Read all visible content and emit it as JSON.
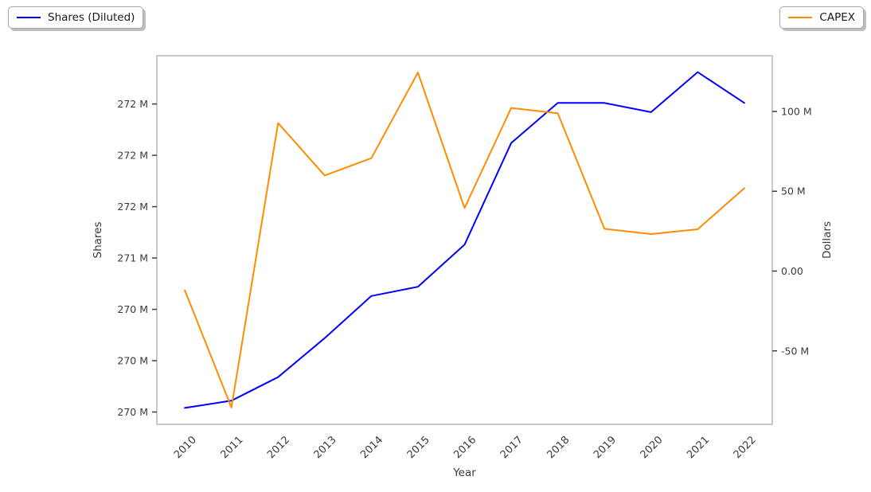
{
  "chart_data": {
    "type": "line",
    "title": "",
    "xlabel": "Year",
    "x": [
      "2010",
      "2011",
      "2012",
      "2013",
      "2014",
      "2015",
      "2016",
      "2017",
      "2018",
      "2019",
      "2020",
      "2021",
      "2022"
    ],
    "left_axis": {
      "label": "Shares",
      "ylim": [
        269.38,
        272.97
      ],
      "ticks": [
        {
          "value": 269.5,
          "label": "270 M"
        },
        {
          "value": 270.0,
          "label": "270 M"
        },
        {
          "value": 270.5,
          "label": "270 M"
        },
        {
          "value": 271.0,
          "label": "271 M"
        },
        {
          "value": 271.5,
          "label": "272 M"
        },
        {
          "value": 272.0,
          "label": "272 M"
        },
        {
          "value": 272.5,
          "label": "272 M"
        }
      ]
    },
    "right_axis": {
      "label": "Dollars",
      "ylim": [
        -96.0,
        134.9
      ],
      "ticks": [
        {
          "value": -50,
          "label": "-50 M"
        },
        {
          "value": 0,
          "label": "0.00"
        },
        {
          "value": 50,
          "label": "50 M"
        },
        {
          "value": 100,
          "label": "100 M"
        }
      ]
    },
    "series": [
      {
        "name": "Shares (Diluted)",
        "axis": "left",
        "color": "#0000ff",
        "values_millions": [
          269.54,
          269.61,
          269.84,
          270.22,
          270.63,
          270.72,
          271.13,
          272.12,
          272.51,
          272.51,
          272.42,
          272.81,
          272.51
        ]
      },
      {
        "name": "CAPEX",
        "axis": "right",
        "color": "#ff8c00",
        "values_millions": [
          -12.0,
          -85.5,
          92.7,
          59.9,
          70.7,
          124.4,
          39.5,
          102.2,
          98.9,
          26.5,
          23.2,
          26.2,
          51.9
        ]
      }
    ],
    "legend_position": {
      "shares": "top-left",
      "capex": "top-right"
    },
    "grid": false
  }
}
